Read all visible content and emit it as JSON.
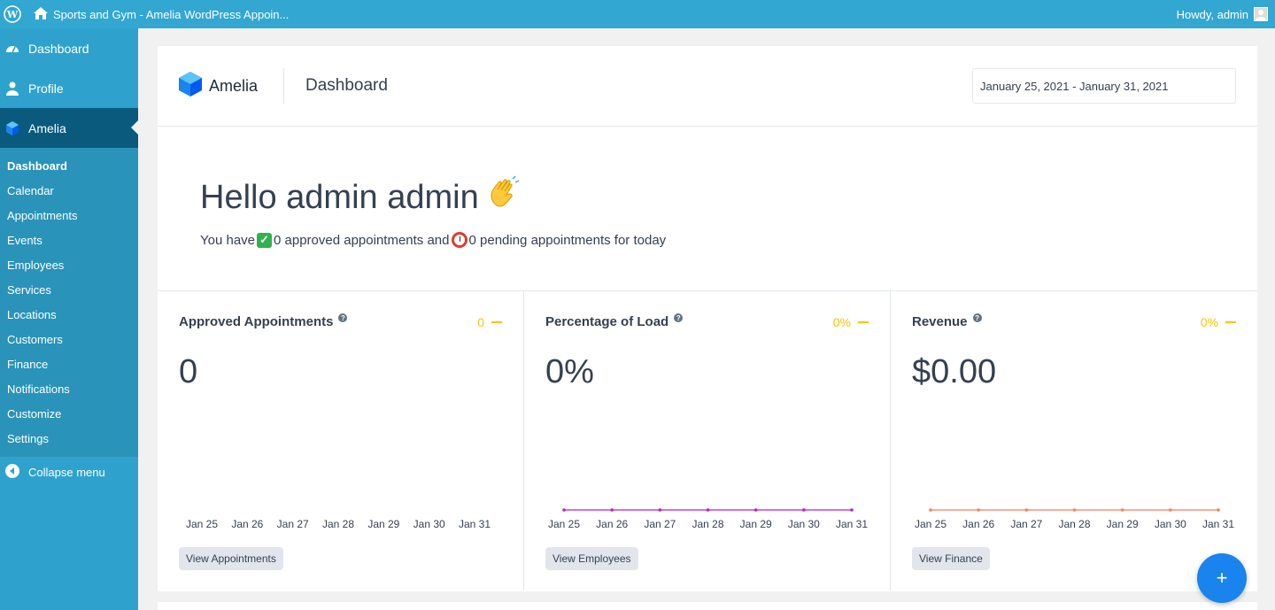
{
  "adminbar": {
    "site_title": "Sports and Gym - Amelia WordPress Appoin...",
    "greeting": "Howdy, admin"
  },
  "sidebar": {
    "items": [
      {
        "label": "Dashboard",
        "icon": "dashboard-icon"
      },
      {
        "label": "Profile",
        "icon": "profile-icon"
      },
      {
        "label": "Amelia",
        "icon": "amelia-icon"
      }
    ],
    "submenu": [
      "Dashboard",
      "Calendar",
      "Appointments",
      "Events",
      "Employees",
      "Services",
      "Locations",
      "Customers",
      "Finance",
      "Notifications",
      "Customize",
      "Settings"
    ],
    "collapse_label": "Collapse menu"
  },
  "header": {
    "brand": "Amelia",
    "page_title": "Dashboard",
    "date_range": "January 25, 2021 - January 31, 2021"
  },
  "hello": {
    "greeting": "Hello admin admin",
    "summary_prefix": "You have",
    "summary_mid": "0 approved appointments and",
    "summary_suffix": "0 pending appointments for today"
  },
  "cards": [
    {
      "title": "Approved Appointments",
      "trend": "0",
      "big": "0",
      "button": "View Appointments"
    },
    {
      "title": "Percentage of Load",
      "trend": "0%",
      "big": "0%",
      "button": "View Employees"
    },
    {
      "title": "Revenue",
      "trend": "0%",
      "big": "$0.00",
      "button": "View Finance"
    }
  ],
  "chart_data": [
    {
      "type": "bar",
      "categories": [
        "Jan 25",
        "Jan 26",
        "Jan 27",
        "Jan 28",
        "Jan 29",
        "Jan 30",
        "Jan 31"
      ],
      "values": [
        0,
        0,
        0,
        0,
        0,
        0,
        0
      ],
      "color": "#1a84ee"
    },
    {
      "type": "line",
      "categories": [
        "Jan 25",
        "Jan 26",
        "Jan 27",
        "Jan 28",
        "Jan 29",
        "Jan 30",
        "Jan 31"
      ],
      "values": [
        0,
        0,
        0,
        0,
        0,
        0,
        0
      ],
      "color": "#c11fc0"
    },
    {
      "type": "line",
      "categories": [
        "Jan 25",
        "Jan 26",
        "Jan 27",
        "Jan 28",
        "Jan 29",
        "Jan 30",
        "Jan 31"
      ],
      "values": [
        0,
        0,
        0,
        0,
        0,
        0,
        0
      ],
      "color": "#fa7d5c"
    }
  ],
  "fab_label": "+"
}
